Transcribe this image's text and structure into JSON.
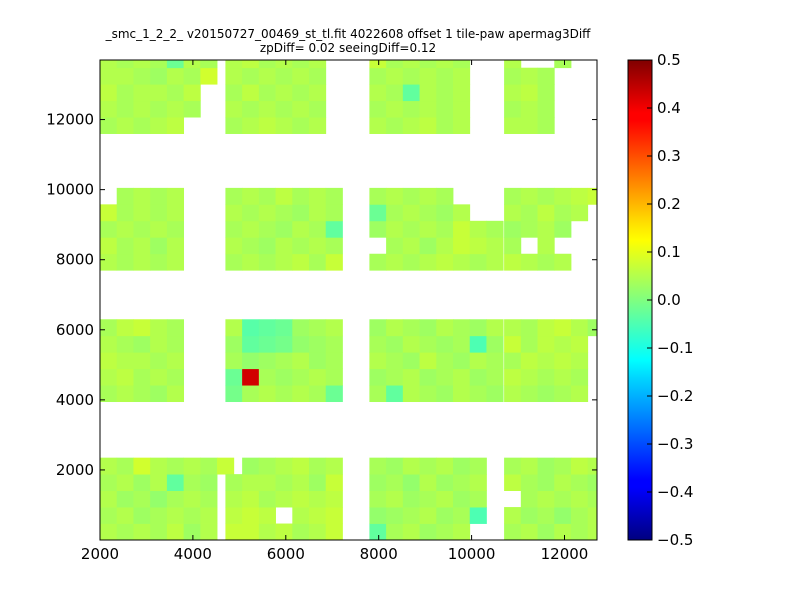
{
  "chart_data": {
    "type": "heatmap",
    "title_lines": [
      "_smc_1_2_2_ v20150727_00469_st_tl.fit 4022608 offset 1 tile-paw apermag3Diff",
      "zpDiff= 0.02 seeingDiff=0.12"
    ],
    "xlabel": "",
    "ylabel": "",
    "xlim": [
      2000,
      12700
    ],
    "ylim": [
      0,
      13700
    ],
    "x_ticks": [
      2000,
      4000,
      6000,
      8000,
      10000,
      12000
    ],
    "y_ticks": [
      2000,
      4000,
      6000,
      8000,
      10000,
      12000
    ],
    "colorbar": {
      "colormap": "jet",
      "vmin": -0.5,
      "vmax": 0.5,
      "ticks": [
        0.5,
        0.4,
        0.3,
        0.2,
        0.1,
        0.0,
        -0.1,
        -0.2,
        -0.3,
        -0.4,
        -0.5
      ],
      "tick_labels": [
        "0.5",
        "0.4",
        "0.3",
        "0.2",
        "0.1",
        "0.0",
        "−0.1",
        "−0.2",
        "−0.3",
        "−0.4",
        "−0.5"
      ]
    },
    "cell_size": [
      360,
      470
    ],
    "columns_x_start": [
      2000,
      4700,
      7800,
      10700
    ],
    "rows_y_start": [
      0,
      3950,
      7700,
      11600
    ],
    "tiles_values": [
      [
        [
          0.05,
          0.04,
          0.05,
          0.04,
          0.06,
          0.03,
          0.05,
          null,
          null,
          null,
          null
        ],
        [
          0.04,
          0.05,
          0.03,
          0.04,
          0.05,
          0.04,
          0.05,
          null,
          null,
          null,
          null
        ],
        [
          0.05,
          0.03,
          0.04,
          0.02,
          0.04,
          0.05,
          0.04,
          null,
          null,
          null,
          null
        ],
        [
          0.04,
          0.05,
          0.03,
          0.05,
          -0.03,
          0.04,
          0.03,
          null,
          null,
          null,
          null
        ],
        [
          0.05,
          0.04,
          0.08,
          0.05,
          0.04,
          0.05,
          0.04,
          0.07,
          null,
          null,
          null
        ]
      ],
      [
        [
          0.07,
          0.07,
          0.05,
          0.06,
          0.04,
          0.05,
          0.07
        ],
        [
          0.06,
          0.07,
          0.06,
          null,
          0.05,
          0.06,
          0.07
        ],
        [
          0.05,
          0.06,
          0.04,
          0.05,
          0.06,
          0.05,
          0.06
        ],
        [
          0.04,
          0.05,
          0.05,
          0.04,
          0.05,
          0.03,
          0.07
        ],
        [
          null,
          0.03,
          0.04,
          0.05,
          0.06,
          0.04,
          0.05
        ]
      ],
      [
        [
          -0.03,
          0.04,
          0.05,
          0.03,
          0.04,
          0.05,
          null,
          null
        ],
        [
          0.02,
          0.03,
          0.04,
          0.05,
          0.03,
          0.04,
          -0.05,
          null
        ],
        [
          0.04,
          0.05,
          0.03,
          0.04,
          0.05,
          0.03,
          0.04,
          null
        ],
        [
          0.03,
          0.04,
          0.02,
          0.05,
          0.03,
          0.04,
          0.05,
          null
        ],
        [
          0.04,
          0.03,
          0.05,
          0.04,
          0.05,
          0.03,
          0.04,
          null
        ]
      ],
      [
        [
          0.04,
          0.05,
          0.03,
          0.05,
          0.04,
          0.05,
          0.08,
          null
        ],
        [
          0.05,
          0.03,
          0.04,
          0.02,
          0.04,
          0.05,
          null,
          null
        ],
        [
          null,
          0.04,
          0.05,
          0.04,
          0.05,
          0.04,
          null,
          null
        ],
        [
          0.06,
          0.04,
          0.03,
          0.05,
          0.04,
          0.03,
          null,
          null
        ],
        [
          0.04,
          0.05,
          0.03,
          0.04,
          0.06,
          0.05,
          0.07,
          null
        ]
      ]
    ],
    "tiles_values_row1": [
      [
        [
          0.04,
          0.05,
          0.04,
          0.03,
          0.05
        ],
        [
          0.05,
          0.06,
          0.04,
          0.05,
          0.04
        ],
        [
          0.06,
          0.05,
          0.05,
          0.04,
          0.05
        ],
        [
          0.05,
          0.04,
          0.03,
          0.05,
          0.04
        ],
        [
          0.04,
          0.06,
          0.07,
          0.05,
          0.04
        ]
      ],
      [
        [
          -0.01,
          0.04,
          0.05,
          0.04,
          0.05,
          0.04,
          -0.02
        ],
        [
          -0.02,
          0.42,
          0.04,
          0.03,
          0.04,
          0.05,
          0.04
        ],
        [
          0.04,
          0.02,
          0.03,
          0.04,
          0.05,
          0.03,
          0.04
        ],
        [
          0.03,
          -0.03,
          -0.02,
          -0.01,
          0.02,
          0.03,
          0.04
        ],
        [
          0.05,
          -0.04,
          -0.03,
          -0.02,
          0.03,
          0.04,
          0.05
        ]
      ],
      [
        [
          0.04,
          -0.03,
          0.05,
          0.04,
          0.03,
          0.05,
          0.04,
          0.03
        ],
        [
          0.03,
          0.04,
          0.05,
          0.03,
          0.04,
          0.05,
          0.03,
          0.04
        ],
        [
          0.05,
          0.04,
          0.03,
          0.06,
          0.04,
          0.03,
          0.05,
          0.04
        ],
        [
          0.04,
          0.03,
          0.05,
          0.04,
          0.03,
          0.04,
          -0.05,
          0.03
        ],
        [
          0.03,
          0.05,
          0.04,
          0.03,
          0.05,
          0.04,
          0.03,
          0.05
        ]
      ],
      [
        [
          0.05,
          0.04,
          0.03,
          0.04,
          0.05,
          null,
          null,
          0.07
        ],
        [
          0.06,
          0.05,
          0.04,
          0.05,
          0.04,
          null,
          null,
          null
        ],
        [
          0.04,
          0.06,
          0.05,
          0.06,
          0.05,
          null,
          null,
          null
        ],
        [
          0.07,
          0.04,
          0.06,
          0.05,
          0.06,
          null,
          null,
          null
        ],
        [
          0.05,
          0.04,
          0.06,
          0.07,
          0.05,
          0.03,
          0.1,
          null
        ]
      ]
    ],
    "tiles_values_row2": [
      [
        [
          0.05,
          0.04,
          0.05,
          0.04,
          0.05
        ],
        [
          0.06,
          0.04,
          0.05,
          0.03,
          0.05
        ],
        [
          0.04,
          0.05,
          0.04,
          0.05,
          0.04
        ],
        [
          0.07,
          0.04,
          0.05,
          0.04,
          0.05
        ],
        [
          null,
          0.04,
          0.05,
          0.04,
          0.05
        ]
      ],
      [
        [
          0.04,
          0.05,
          0.04,
          0.05,
          0.06,
          0.04,
          0.07
        ],
        [
          0.05,
          0.04,
          0.03,
          0.05,
          0.04,
          0.05,
          0.04
        ],
        [
          0.04,
          0.05,
          0.04,
          0.03,
          0.05,
          0.04,
          -0.03
        ],
        [
          0.05,
          0.04,
          0.05,
          0.04,
          0.03,
          0.05,
          0.04
        ],
        [
          0.04,
          0.05,
          0.04,
          0.06,
          0.04,
          0.05,
          0.04
        ]
      ],
      [
        [
          0.04,
          0.05,
          0.04,
          0.05,
          0.06,
          0.05,
          0.04,
          0.05
        ],
        [
          null,
          0.04,
          0.05,
          0.03,
          0.05,
          0.07,
          0.06,
          0.05
        ],
        [
          0.03,
          0.05,
          0.04,
          0.05,
          0.04,
          0.07,
          0.05,
          0.04
        ],
        [
          -0.02,
          0.04,
          0.05,
          0.04,
          0.03,
          0.05,
          null,
          null
        ],
        [
          0.04,
          0.05,
          0.04,
          0.05,
          0.04,
          null,
          null,
          null
        ]
      ],
      [
        [
          0.06,
          0.05,
          0.04,
          0.05,
          null,
          null,
          null,
          0.03
        ],
        [
          0.04,
          null,
          0.05,
          null,
          null,
          null,
          null,
          null
        ],
        [
          0.03,
          0.04,
          0.05,
          0.03,
          null,
          null,
          null,
          null
        ],
        [
          0.05,
          0.04,
          0.06,
          0.04,
          0.05,
          null,
          null,
          null
        ],
        [
          0.04,
          0.05,
          0.04,
          0.05,
          0.06,
          0.07,
          0.08,
          0.06
        ]
      ]
    ],
    "tiles_values_row3": [
      [
        [
          0.04,
          0.05,
          0.04,
          0.05,
          0.06,
          null,
          null
        ],
        [
          0.05,
          0.04,
          0.05,
          0.04,
          0.05,
          0.04,
          null
        ],
        [
          0.06,
          0.04,
          0.05,
          0.05,
          0.04,
          0.06,
          null
        ],
        [
          0.05,
          0.05,
          0.04,
          0.03,
          0.05,
          0.04,
          0.08
        ],
        [
          0.05,
          0.04,
          0.05,
          0.04,
          -0.02,
          0.05,
          0.04
        ]
      ],
      [
        [
          0.04,
          0.05,
          0.06,
          0.05,
          0.04,
          0.05
        ],
        [
          0.05,
          0.04,
          0.05,
          0.04,
          0.05,
          0.04
        ],
        [
          0.04,
          0.06,
          0.04,
          0.05,
          0.04,
          0.05
        ],
        [
          0.05,
          0.04,
          0.05,
          0.04,
          0.05,
          0.04
        ],
        [
          0.05,
          0.06,
          0.04,
          0.05,
          0.04,
          0.05
        ]
      ],
      [
        [
          0.05,
          0.04,
          0.05,
          0.06,
          0.04,
          0.05
        ],
        [
          0.04,
          0.05,
          0.04,
          0.05,
          0.04,
          0.05
        ],
        [
          0.05,
          0.04,
          -0.03,
          0.05,
          0.04,
          0.05
        ],
        [
          0.04,
          0.05,
          0.04,
          0.05,
          0.04,
          0.05
        ],
        [
          0.07,
          0.04,
          0.05,
          0.04,
          0.05,
          0.04
        ]
      ],
      [
        [
          0.05,
          0.05,
          0.04,
          null
        ],
        [
          0.04,
          0.05,
          0.04,
          null
        ],
        [
          0.05,
          0.06,
          0.04,
          null
        ],
        [
          0.04,
          0.05,
          0.04,
          null
        ],
        [
          0.05,
          null,
          null,
          0.04
        ]
      ]
    ]
  }
}
